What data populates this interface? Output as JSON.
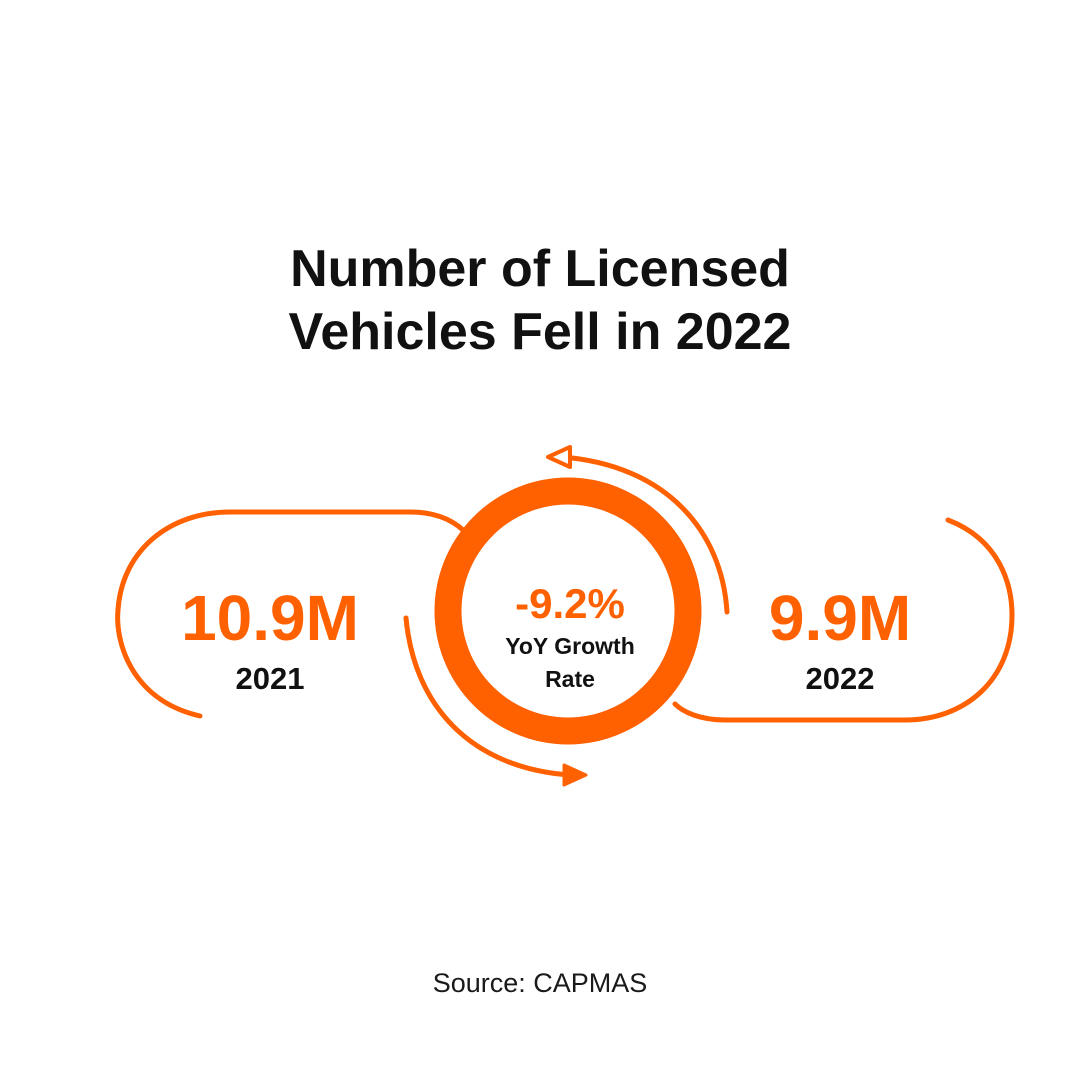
{
  "title": {
    "line1": "Number of Licensed",
    "line2": "Vehicles Fell in 2022"
  },
  "left_stat": {
    "value": "10.9M",
    "year": "2021"
  },
  "right_stat": {
    "value": "9.9M",
    "year": "2022"
  },
  "center": {
    "value": "-9.2%",
    "label": "YoY Growth Rate"
  },
  "source": "Source: CAPMAS",
  "colors": {
    "accent": "#ff6000",
    "text": "#111111",
    "background": "#ffffff"
  },
  "icons": [
    "arrow-left-icon",
    "arrow-right-icon"
  ]
}
